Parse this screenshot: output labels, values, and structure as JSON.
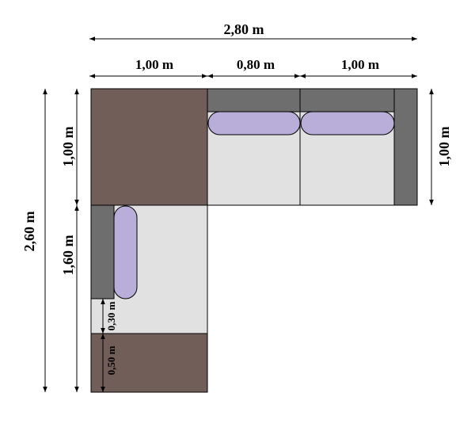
{
  "dimensions": {
    "total_width": "2,80 m",
    "corner_width": "1,00 m",
    "middle_width": "0,80 m",
    "end_width": "1,00 m",
    "total_height": "2,60 m",
    "top_height_left": "1,00 m",
    "lower_height": "1,60 m",
    "gap_height": "0,30 m",
    "footrest_height": "0,50 m",
    "top_height_right": "1,00 m"
  },
  "colors": {
    "corner": "#725E58",
    "backrest": "#6E6E6E",
    "seat": "#E1E1E1",
    "cushion": "#B9AEDA",
    "outline": "#000000"
  }
}
